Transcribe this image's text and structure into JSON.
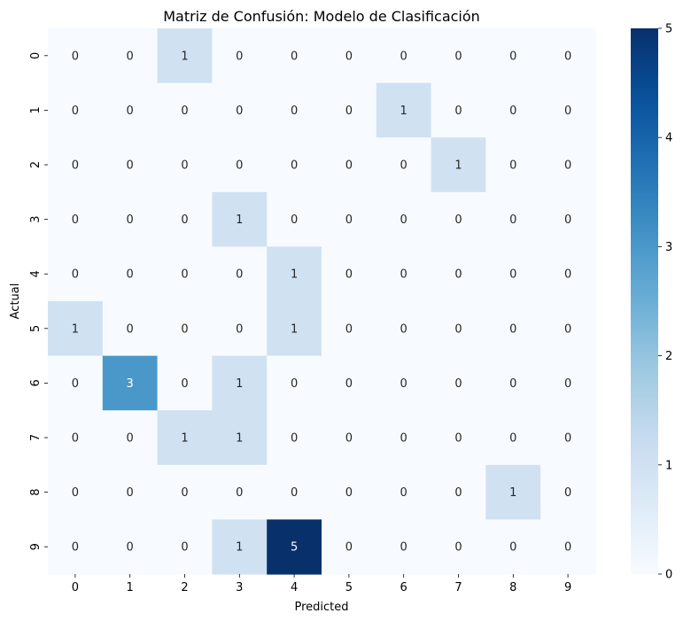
{
  "chart_data": {
    "type": "heatmap",
    "title": "Matriz de Confusión: Modelo de Clasificación",
    "xlabel": "Predicted",
    "ylabel": "Actual",
    "x_categories": [
      "0",
      "1",
      "2",
      "3",
      "4",
      "5",
      "6",
      "7",
      "8",
      "9"
    ],
    "y_categories": [
      "0",
      "1",
      "2",
      "3",
      "4",
      "5",
      "6",
      "7",
      "8",
      "9"
    ],
    "matrix": [
      [
        0,
        0,
        1,
        0,
        0,
        0,
        0,
        0,
        0,
        0
      ],
      [
        0,
        0,
        0,
        0,
        0,
        0,
        1,
        0,
        0,
        0
      ],
      [
        0,
        0,
        0,
        0,
        0,
        0,
        0,
        1,
        0,
        0
      ],
      [
        0,
        0,
        0,
        1,
        0,
        0,
        0,
        0,
        0,
        0
      ],
      [
        0,
        0,
        0,
        0,
        1,
        0,
        0,
        0,
        0,
        0
      ],
      [
        1,
        0,
        0,
        0,
        1,
        0,
        0,
        0,
        0,
        0
      ],
      [
        0,
        3,
        0,
        1,
        0,
        0,
        0,
        0,
        0,
        0
      ],
      [
        0,
        0,
        1,
        1,
        0,
        0,
        0,
        0,
        0,
        0
      ],
      [
        0,
        0,
        0,
        0,
        0,
        0,
        0,
        0,
        1,
        0
      ],
      [
        0,
        0,
        0,
        1,
        5,
        0,
        0,
        0,
        0,
        0
      ]
    ],
    "colormap": "Blues",
    "vmin": 0,
    "vmax": 5,
    "colorbar_ticks": [
      "0",
      "1",
      "2",
      "3",
      "4",
      "5"
    ],
    "annotations": true,
    "grid": false,
    "colors": {
      "low": "#f7fbff",
      "high": "#08306b",
      "label_dark": "#262626",
      "label_light": "#ffffff"
    }
  }
}
